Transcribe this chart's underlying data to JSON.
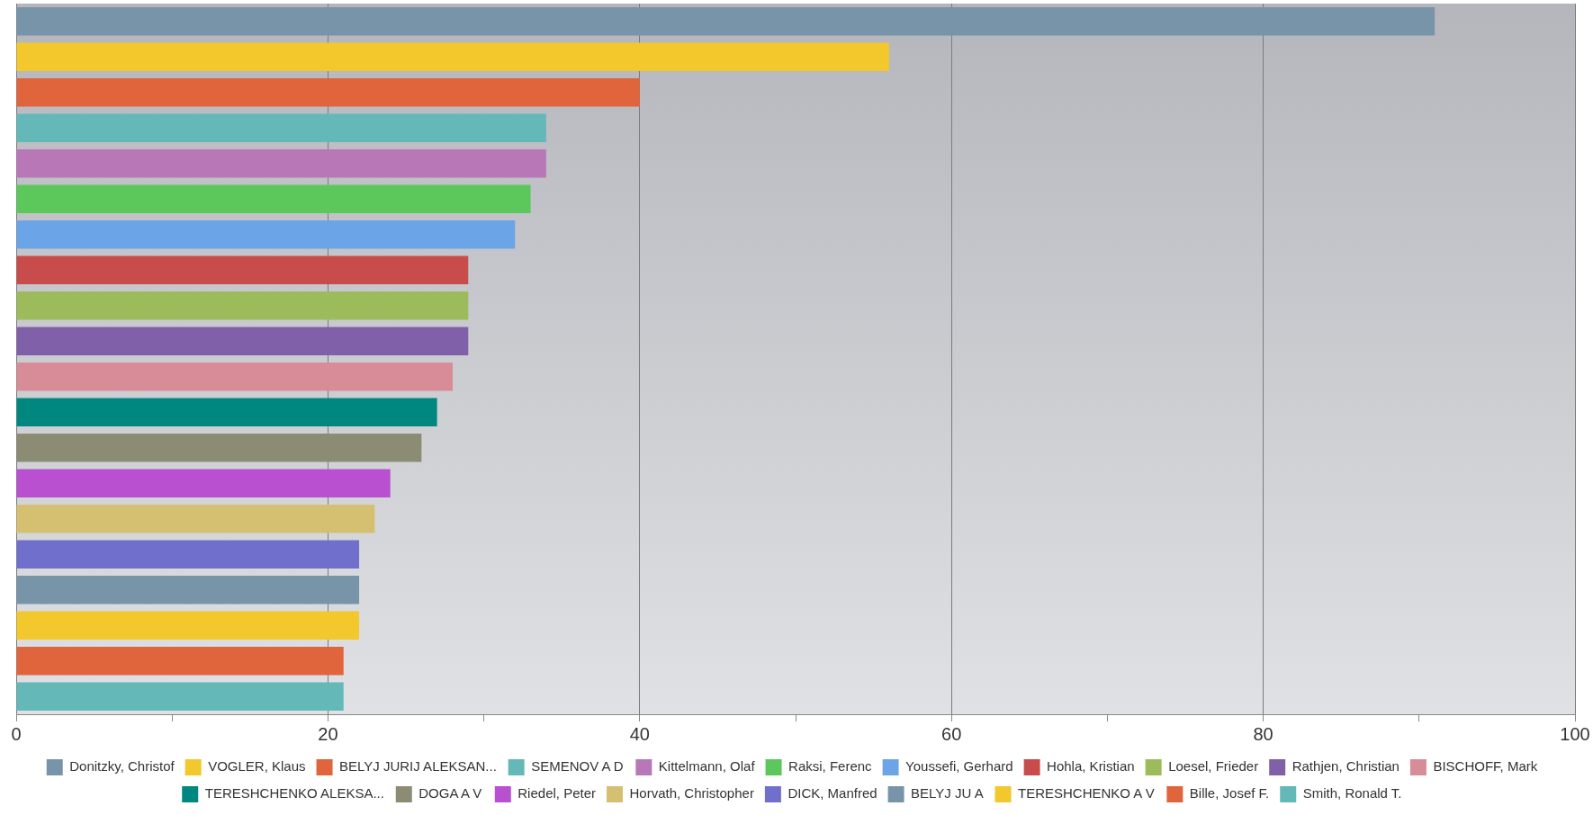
{
  "chart_data": {
    "type": "bar",
    "orientation": "horizontal",
    "categories": [
      null,
      null,
      null,
      null,
      null,
      null,
      null,
      null,
      null,
      null,
      null,
      null,
      null,
      null,
      null,
      null,
      null,
      null,
      null,
      null
    ],
    "series": [
      {
        "name": "Donitzky, Christof",
        "color": "#7894a8",
        "values": [
          91,
          null,
          null,
          null,
          null,
          null,
          null,
          null,
          null,
          null,
          null,
          null,
          null,
          null,
          null,
          null,
          null,
          null,
          null,
          null
        ]
      },
      {
        "name": "VOGLER, Klaus",
        "color": "#f2c82c",
        "values": [
          null,
          56,
          null,
          null,
          null,
          null,
          null,
          null,
          null,
          null,
          null,
          null,
          null,
          null,
          null,
          null,
          null,
          null,
          null,
          null
        ]
      },
      {
        "name": "BELYJ JURIJ ALEKSAN...",
        "color": "#e0643c",
        "values": [
          null,
          null,
          40,
          null,
          null,
          null,
          null,
          null,
          null,
          null,
          null,
          null,
          null,
          null,
          null,
          null,
          null,
          null,
          null,
          null
        ]
      },
      {
        "name": "SEMENOV A D",
        "color": "#64b8b8",
        "values": [
          null,
          null,
          null,
          34,
          null,
          null,
          null,
          null,
          null,
          null,
          null,
          null,
          null,
          null,
          null,
          null,
          null,
          null,
          null,
          null
        ]
      },
      {
        "name": "Kittelmann, Olaf",
        "color": "#b878b8",
        "values": [
          null,
          null,
          null,
          null,
          34,
          null,
          null,
          null,
          null,
          null,
          null,
          null,
          null,
          null,
          null,
          null,
          null,
          null,
          null,
          null
        ]
      },
      {
        "name": "Raksi, Ferenc",
        "color": "#5cc85c",
        "values": [
          null,
          null,
          null,
          null,
          null,
          33,
          null,
          null,
          null,
          null,
          null,
          null,
          null,
          null,
          null,
          null,
          null,
          null,
          null,
          null
        ]
      },
      {
        "name": "Youssefi, Gerhard",
        "color": "#6ca4e8",
        "values": [
          null,
          null,
          null,
          null,
          null,
          null,
          32,
          null,
          null,
          null,
          null,
          null,
          null,
          null,
          null,
          null,
          null,
          null,
          null,
          null
        ]
      },
      {
        "name": "Hohla, Kristian",
        "color": "#c84c4c",
        "values": [
          null,
          null,
          null,
          null,
          null,
          null,
          null,
          29,
          null,
          null,
          null,
          null,
          null,
          null,
          null,
          null,
          null,
          null,
          null,
          null
        ]
      },
      {
        "name": "Loesel, Frieder",
        "color": "#9cbc5c",
        "values": [
          null,
          null,
          null,
          null,
          null,
          null,
          null,
          null,
          29,
          null,
          null,
          null,
          null,
          null,
          null,
          null,
          null,
          null,
          null,
          null
        ]
      },
      {
        "name": "Rathjen, Christian",
        "color": "#8060a8",
        "values": [
          null,
          null,
          null,
          null,
          null,
          null,
          null,
          null,
          null,
          29,
          null,
          null,
          null,
          null,
          null,
          null,
          null,
          null,
          null,
          null
        ]
      },
      {
        "name": "BISCHOFF, Mark",
        "color": "#d88c98",
        "values": [
          null,
          null,
          null,
          null,
          null,
          null,
          null,
          null,
          null,
          null,
          28,
          null,
          null,
          null,
          null,
          null,
          null,
          null,
          null,
          null
        ]
      },
      {
        "name": "TERESHCHENKO ALEKSA...",
        "color": "#008880",
        "values": [
          null,
          null,
          null,
          null,
          null,
          null,
          null,
          null,
          null,
          null,
          null,
          27,
          null,
          null,
          null,
          null,
          null,
          null,
          null,
          null
        ]
      },
      {
        "name": "DOGA A V",
        "color": "#8c8c74",
        "values": [
          null,
          null,
          null,
          null,
          null,
          null,
          null,
          null,
          null,
          null,
          null,
          null,
          26,
          null,
          null,
          null,
          null,
          null,
          null,
          null
        ]
      },
      {
        "name": "Riedel, Peter",
        "color": "#b850d0",
        "values": [
          null,
          null,
          null,
          null,
          null,
          null,
          null,
          null,
          null,
          null,
          null,
          null,
          null,
          24,
          null,
          null,
          null,
          null,
          null,
          null
        ]
      },
      {
        "name": "Horvath, Christopher",
        "color": "#d4c070",
        "values": [
          null,
          null,
          null,
          null,
          null,
          null,
          null,
          null,
          null,
          null,
          null,
          null,
          null,
          null,
          23,
          null,
          null,
          null,
          null,
          null
        ]
      },
      {
        "name": "DICK, Manfred",
        "color": "#7070cc",
        "values": [
          null,
          null,
          null,
          null,
          null,
          null,
          null,
          null,
          null,
          null,
          null,
          null,
          null,
          null,
          null,
          22,
          null,
          null,
          null,
          null
        ]
      },
      {
        "name": "BELYJ JU A",
        "color": "#7894a8",
        "values": [
          null,
          null,
          null,
          null,
          null,
          null,
          null,
          null,
          null,
          null,
          null,
          null,
          null,
          null,
          null,
          null,
          22,
          null,
          null,
          null
        ]
      },
      {
        "name": "TERESHCHENKO A V",
        "color": "#f2c82c",
        "values": [
          null,
          null,
          null,
          null,
          null,
          null,
          null,
          null,
          null,
          null,
          null,
          null,
          null,
          null,
          null,
          null,
          null,
          22,
          null,
          null
        ]
      },
      {
        "name": "Bille, Josef F.",
        "color": "#e0643c",
        "values": [
          null,
          null,
          null,
          null,
          null,
          null,
          null,
          null,
          null,
          null,
          null,
          null,
          null,
          null,
          null,
          null,
          null,
          null,
          21,
          null
        ]
      },
      {
        "name": "Smith, Ronald T.",
        "color": "#64b8b8",
        "values": [
          null,
          null,
          null,
          null,
          null,
          null,
          null,
          null,
          null,
          null,
          null,
          null,
          null,
          null,
          null,
          null,
          null,
          null,
          null,
          21
        ]
      }
    ],
    "xlim": [
      0,
      100
    ],
    "xticks": [
      0,
      {
        "value": 10,
        "label": null
      },
      20,
      {
        "value": 30,
        "label": null
      },
      40,
      {
        "value": 50,
        "label": null
      },
      60,
      {
        "value": 70,
        "label": null
      },
      80,
      {
        "value": 90,
        "label": null
      },
      100
    ],
    "grid": "x",
    "legend": "bottom",
    "tick_labels": "x"
  }
}
